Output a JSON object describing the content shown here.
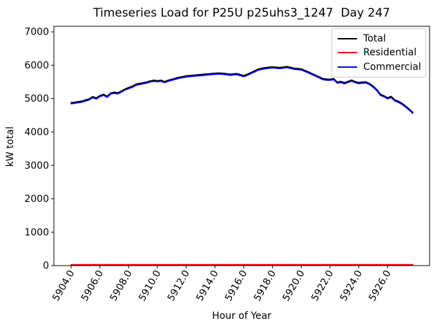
{
  "figure": {
    "title": "Timeseries Load for P25U p25uhs3_1247  Day 247",
    "xlabel": "Hour of Year",
    "ylabel": "kW total"
  },
  "legend": {
    "entries": [
      {
        "label": "Total",
        "color": "#000000"
      },
      {
        "label": "Residential",
        "color": "#ff0000"
      },
      {
        "label": "Commercial",
        "color": "#0000ff"
      }
    ]
  },
  "chart_data": {
    "type": "line",
    "title": "Timeseries Load for P25U p25uhs3_1247  Day 247",
    "xlabel": "Hour of Year",
    "ylabel": "kW total",
    "grid": false,
    "legend_position": "upper right",
    "xlim": [
      5902.8,
      5928.92
    ],
    "ylim": [
      0,
      7166
    ],
    "xticks": [
      5904.0,
      5906.0,
      5908.0,
      5910.0,
      5912.0,
      5914.0,
      5916.0,
      5918.0,
      5920.0,
      5922.0,
      5924.0,
      5926.0
    ],
    "xtick_labels": [
      "5904.0",
      "5906.0",
      "5908.0",
      "5910.0",
      "5912.0",
      "5914.0",
      "5916.0",
      "5918.0",
      "5920.0",
      "5922.0",
      "5924.0",
      "5926.0"
    ],
    "xtick_rotation": 60,
    "yticks": [
      0,
      1000,
      2000,
      3000,
      4000,
      5000,
      6000,
      7000
    ],
    "x": [
      5904.0,
      5904.25,
      5904.5,
      5904.75,
      5905.0,
      5905.25,
      5905.5,
      5905.75,
      5906.0,
      5906.25,
      5906.5,
      5906.75,
      5907.0,
      5907.25,
      5907.5,
      5907.75,
      5908.0,
      5908.25,
      5908.5,
      5908.75,
      5909.0,
      5909.25,
      5909.5,
      5909.75,
      5910.0,
      5910.25,
      5910.5,
      5910.75,
      5911.0,
      5911.25,
      5911.5,
      5911.75,
      5912.0,
      5912.25,
      5912.5,
      5912.75,
      5913.0,
      5913.25,
      5913.5,
      5913.75,
      5914.0,
      5914.25,
      5914.5,
      5914.75,
      5915.0,
      5915.25,
      5915.5,
      5915.75,
      5916.0,
      5916.25,
      5916.5,
      5916.75,
      5917.0,
      5917.25,
      5917.5,
      5917.75,
      5918.0,
      5918.25,
      5918.5,
      5918.75,
      5919.0,
      5919.25,
      5919.5,
      5919.75,
      5920.0,
      5920.25,
      5920.5,
      5920.75,
      5921.0,
      5921.25,
      5921.5,
      5921.75,
      5922.0,
      5922.25,
      5922.5,
      5922.75,
      5923.0,
      5923.25,
      5923.5,
      5923.75,
      5924.0,
      5924.25,
      5924.5,
      5924.75,
      5925.0,
      5925.25,
      5925.5,
      5925.75,
      5926.0,
      5926.25,
      5926.5,
      5926.75,
      5927.0,
      5927.25,
      5927.5,
      5927.75
    ],
    "series": [
      {
        "name": "Total",
        "color": "#000000",
        "values": [
          4880,
          4890,
          4910,
          4925,
          4960,
          4990,
          5060,
          5020,
          5090,
          5130,
          5070,
          5170,
          5190,
          5175,
          5230,
          5290,
          5330,
          5370,
          5430,
          5455,
          5475,
          5495,
          5530,
          5550,
          5535,
          5550,
          5510,
          5550,
          5580,
          5610,
          5640,
          5660,
          5680,
          5690,
          5700,
          5710,
          5720,
          5730,
          5740,
          5750,
          5760,
          5765,
          5760,
          5750,
          5730,
          5740,
          5750,
          5720,
          5690,
          5730,
          5780,
          5830,
          5880,
          5910,
          5925,
          5940,
          5950,
          5940,
          5930,
          5945,
          5960,
          5935,
          5910,
          5900,
          5890,
          5845,
          5800,
          5750,
          5700,
          5650,
          5600,
          5585,
          5580,
          5600,
          5495,
          5515,
          5475,
          5515,
          5555,
          5510,
          5480,
          5495,
          5500,
          5450,
          5370,
          5270,
          5130,
          5085,
          5025,
          5065,
          4960,
          4920,
          4860,
          4780,
          4690,
          4590
        ]
      },
      {
        "name": "Residential",
        "color": "#ff0000",
        "values": [
          30,
          30,
          30,
          30,
          30,
          30,
          30,
          30,
          30,
          30,
          30,
          30,
          30,
          30,
          30,
          30,
          30,
          30,
          30,
          30,
          30,
          30,
          30,
          30,
          30,
          30,
          30,
          30,
          30,
          30,
          30,
          30,
          30,
          30,
          30,
          30,
          30,
          30,
          30,
          30,
          30,
          30,
          30,
          30,
          30,
          30,
          30,
          30,
          30,
          30,
          30,
          30,
          30,
          30,
          30,
          30,
          30,
          30,
          30,
          30,
          30,
          30,
          30,
          30,
          30,
          30,
          30,
          30,
          30,
          30,
          30,
          30,
          30,
          30,
          30,
          30,
          30,
          30,
          30,
          30,
          30,
          30,
          30,
          30,
          30,
          30,
          30,
          30,
          30,
          30,
          30,
          30,
          30,
          30,
          30,
          30
        ]
      },
      {
        "name": "Commercial",
        "color": "#0000ff",
        "values": [
          4850,
          4860,
          4880,
          4895,
          4930,
          4960,
          5030,
          4990,
          5060,
          5100,
          5040,
          5140,
          5160,
          5145,
          5200,
          5260,
          5300,
          5340,
          5400,
          5425,
          5445,
          5465,
          5500,
          5520,
          5505,
          5520,
          5480,
          5520,
          5550,
          5580,
          5610,
          5630,
          5650,
          5660,
          5670,
          5680,
          5690,
          5700,
          5710,
          5720,
          5730,
          5735,
          5730,
          5720,
          5700,
          5710,
          5720,
          5690,
          5660,
          5700,
          5750,
          5800,
          5850,
          5880,
          5895,
          5910,
          5920,
          5910,
          5900,
          5915,
          5930,
          5905,
          5880,
          5870,
          5860,
          5815,
          5770,
          5720,
          5670,
          5620,
          5570,
          5555,
          5550,
          5570,
          5465,
          5485,
          5445,
          5485,
          5525,
          5480,
          5450,
          5465,
          5470,
          5420,
          5340,
          5240,
          5100,
          5055,
          4995,
          5035,
          4930,
          4890,
          4830,
          4750,
          4660,
          4560
        ]
      }
    ]
  }
}
